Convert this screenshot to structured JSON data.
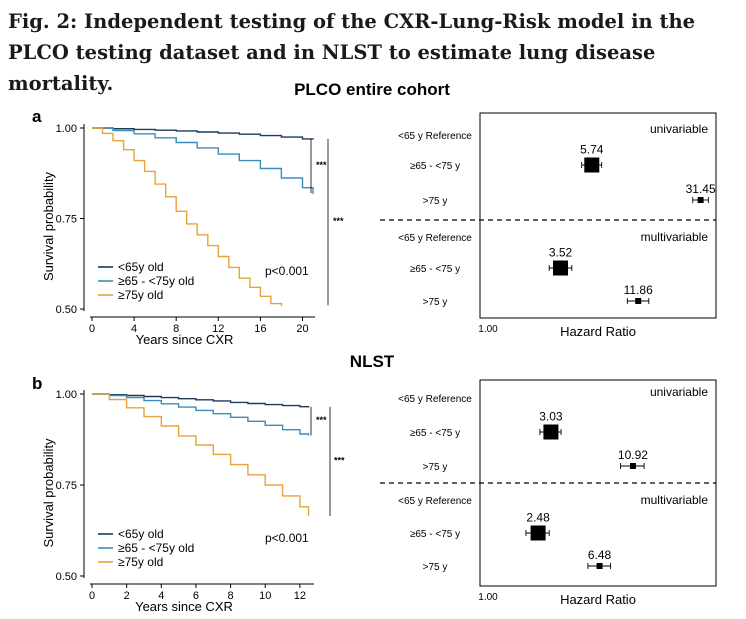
{
  "caption": "Fig. 2: Independent testing of the CXR-Lung-Risk model in the PLCO testing dataset and in NLST to estimate lung disease mortality.",
  "colors": {
    "lt65": "#1b3a5c",
    "65to75": "#3a8db8",
    "gt75": "#e8a33a",
    "marker": "#000000"
  },
  "panels": [
    {
      "letter": "a",
      "heading": "PLCO entire cohort",
      "km": {
        "type": "line",
        "xlabel": "Years since CXR",
        "ylabel": "Survival probability",
        "xlim": [
          0,
          21
        ],
        "ylim": [
          0.5,
          1.0
        ],
        "xticks": [
          0,
          4,
          8,
          12,
          16,
          20
        ],
        "yticks": [
          0.5,
          0.75,
          1.0
        ],
        "ytick_labels": [
          "0.50",
          "0.75",
          "1.00"
        ],
        "legend_position": "bottom-left",
        "pvalue": "p<0.001",
        "series": [
          {
            "name": "<65y old",
            "color_key": "lt65",
            "x": [
              0,
              2,
              4,
              6,
              8,
              10,
              12,
              14,
              16,
              18,
              20,
              21
            ],
            "y": [
              1.0,
              0.998,
              0.996,
              0.994,
              0.992,
              0.989,
              0.986,
              0.983,
              0.979,
              0.975,
              0.97,
              0.968
            ]
          },
          {
            "name": "≥65 - <75y old",
            "color_key": "65to75",
            "x": [
              0,
              2,
              4,
              6,
              8,
              10,
              12,
              14,
              16,
              18,
              20,
              21
            ],
            "y": [
              1.0,
              0.993,
              0.984,
              0.973,
              0.96,
              0.945,
              0.928,
              0.91,
              0.888,
              0.862,
              0.835,
              0.818
            ]
          },
          {
            "name": "≥75y old",
            "color_key": "gt75",
            "x": [
              0,
              1,
              2,
              3,
              4,
              5,
              6,
              7,
              8,
              9,
              10,
              11,
              12,
              13,
              14,
              15,
              16,
              17,
              18
            ],
            "y": [
              1.0,
              0.985,
              0.965,
              0.94,
              0.91,
              0.88,
              0.845,
              0.81,
              0.77,
              0.735,
              0.705,
              0.675,
              0.645,
              0.615,
              0.585,
              0.56,
              0.535,
              0.515,
              0.508
            ]
          }
        ],
        "brackets": [
          {
            "label": "***"
          },
          {
            "label": "***"
          }
        ]
      },
      "forest": {
        "xlabel": "Hazard Ratio",
        "x_tick_label": "1.00",
        "sections": [
          {
            "label": "univariable",
            "rows": [
              {
                "label": "<65 y Reference"
              },
              {
                "label": "≥65 - <75 y",
                "hr": 5.74,
                "hr_label": "5.74",
                "lo": 4.9,
                "hi": 6.7
              },
              {
                "label": ">75 y",
                "hr": 31.45,
                "hr_label": "31.45",
                "lo": 27.8,
                "hi": 35.5
              }
            ]
          },
          {
            "label": "multivariable",
            "rows": [
              {
                "label": "<65 y Reference"
              },
              {
                "label": "≥65 - <75 y",
                "hr": 3.52,
                "hr_label": "3.52",
                "lo": 2.95,
                "hi": 4.2
              },
              {
                "label": ">75 y",
                "hr": 11.86,
                "hr_label": "11.86",
                "lo": 10.0,
                "hi": 14.0
              }
            ]
          }
        ]
      }
    },
    {
      "letter": "b",
      "heading": "NLST",
      "km": {
        "type": "line",
        "xlabel": "Years since CXR",
        "ylabel": "Survival probability",
        "xlim": [
          0,
          12.7
        ],
        "ylim": [
          0.5,
          1.0
        ],
        "xticks": [
          0,
          2,
          4,
          6,
          8,
          10,
          12
        ],
        "yticks": [
          0.5,
          0.75,
          1.0
        ],
        "ytick_labels": [
          "0.50",
          "0.75",
          "1.00"
        ],
        "legend_position": "bottom-left",
        "pvalue": "p<0.001",
        "series": [
          {
            "name": "<65y old",
            "color_key": "lt65",
            "x": [
              0,
              1,
              2,
              3,
              4,
              5,
              6,
              7,
              8,
              9,
              10,
              11,
              12,
              12.5
            ],
            "y": [
              1.0,
              0.998,
              0.996,
              0.993,
              0.99,
              0.987,
              0.984,
              0.981,
              0.977,
              0.974,
              0.971,
              0.968,
              0.965,
              0.963
            ]
          },
          {
            "name": "≥65 - <75y old",
            "color_key": "65to75",
            "x": [
              0,
              1,
              2,
              3,
              4,
              5,
              6,
              7,
              8,
              9,
              10,
              11,
              12,
              12.5
            ],
            "y": [
              1.0,
              0.996,
              0.99,
              0.982,
              0.973,
              0.964,
              0.955,
              0.946,
              0.936,
              0.925,
              0.914,
              0.902,
              0.89,
              0.886
            ]
          },
          {
            "name": "≥75y old",
            "color_key": "gt75",
            "x": [
              0,
              1,
              2,
              3,
              4,
              5,
              6,
              7,
              8,
              9,
              10,
              11,
              12,
              12.5
            ],
            "y": [
              1.0,
              0.985,
              0.962,
              0.938,
              0.912,
              0.885,
              0.86,
              0.834,
              0.806,
              0.778,
              0.75,
              0.72,
              0.69,
              0.665
            ]
          }
        ],
        "brackets": [
          {
            "label": "***"
          },
          {
            "label": "***"
          }
        ]
      },
      "forest": {
        "xlabel": "Hazard Ratio",
        "x_tick_label": "1.00",
        "sections": [
          {
            "label": "univariable",
            "rows": [
              {
                "label": "<65 y Reference"
              },
              {
                "label": "≥65 - <75 y",
                "hr": 3.03,
                "hr_label": "3.03",
                "lo": 2.55,
                "hi": 3.55
              },
              {
                "label": ">75 y",
                "hr": 10.92,
                "hr_label": "10.92",
                "lo": 9.0,
                "hi": 13.0
              }
            ]
          },
          {
            "label": "multivariable",
            "rows": [
              {
                "label": "<65 y Reference"
              },
              {
                "label": "≥65 - <75 y",
                "hr": 2.48,
                "hr_label": "2.48",
                "lo": 2.05,
                "hi": 2.95
              },
              {
                "label": ">75 y",
                "hr": 6.48,
                "hr_label": "6.48",
                "lo": 5.4,
                "hi": 7.7
              }
            ]
          }
        ]
      }
    }
  ],
  "chart_data": [
    {
      "type": "line",
      "title": "PLCO entire cohort",
      "xlabel": "Years since CXR",
      "ylabel": "Survival probability",
      "xlim": [
        0,
        21
      ],
      "ylim": [
        0.5,
        1.0
      ],
      "annotation": "p<0.001",
      "series": [
        {
          "name": "<65y old",
          "x": [
            0,
            4,
            8,
            12,
            16,
            20,
            21
          ],
          "y": [
            1.0,
            0.996,
            0.992,
            0.986,
            0.979,
            0.97,
            0.968
          ]
        },
        {
          "name": "≥65 - <75y old",
          "x": [
            0,
            4,
            8,
            12,
            16,
            20,
            21
          ],
          "y": [
            1.0,
            0.984,
            0.96,
            0.928,
            0.888,
            0.835,
            0.818
          ]
        },
        {
          "name": "≥75y old",
          "x": [
            0,
            4,
            8,
            12,
            16,
            18
          ],
          "y": [
            1.0,
            0.91,
            0.77,
            0.645,
            0.535,
            0.508
          ]
        }
      ]
    },
    {
      "type": "scatter",
      "title": "PLCO entire cohort",
      "xlabel": "Hazard Ratio",
      "series": [
        {
          "name": "univariable",
          "categories": [
            "≥65 - <75 y",
            ">75 y"
          ],
          "values": [
            5.74,
            31.45
          ]
        },
        {
          "name": "multivariable",
          "categories": [
            "≥65 - <75 y",
            ">75 y"
          ],
          "values": [
            3.52,
            11.86
          ]
        }
      ]
    },
    {
      "type": "line",
      "title": "NLST",
      "xlabel": "Years since CXR",
      "ylabel": "Survival probability",
      "xlim": [
        0,
        12.7
      ],
      "ylim": [
        0.5,
        1.0
      ],
      "annotation": "p<0.001",
      "series": [
        {
          "name": "<65y old",
          "x": [
            0,
            2,
            4,
            6,
            8,
            10,
            12
          ],
          "y": [
            1.0,
            0.996,
            0.99,
            0.984,
            0.977,
            0.971,
            0.965
          ]
        },
        {
          "name": "≥65 - <75y old",
          "x": [
            0,
            2,
            4,
            6,
            8,
            10,
            12
          ],
          "y": [
            1.0,
            0.99,
            0.973,
            0.955,
            0.936,
            0.914,
            0.89
          ]
        },
        {
          "name": "≥75y old",
          "x": [
            0,
            2,
            4,
            6,
            8,
            10,
            12,
            12.5
          ],
          "y": [
            1.0,
            0.962,
            0.912,
            0.86,
            0.806,
            0.75,
            0.69,
            0.665
          ]
        }
      ]
    },
    {
      "type": "scatter",
      "title": "NLST",
      "xlabel": "Hazard Ratio",
      "series": [
        {
          "name": "univariable",
          "categories": [
            "≥65 - <75 y",
            ">75 y"
          ],
          "values": [
            3.03,
            10.92
          ]
        },
        {
          "name": "multivariable",
          "categories": [
            "≥65 - <75 y",
            ">75 y"
          ],
          "values": [
            2.48,
            6.48
          ]
        }
      ]
    }
  ]
}
